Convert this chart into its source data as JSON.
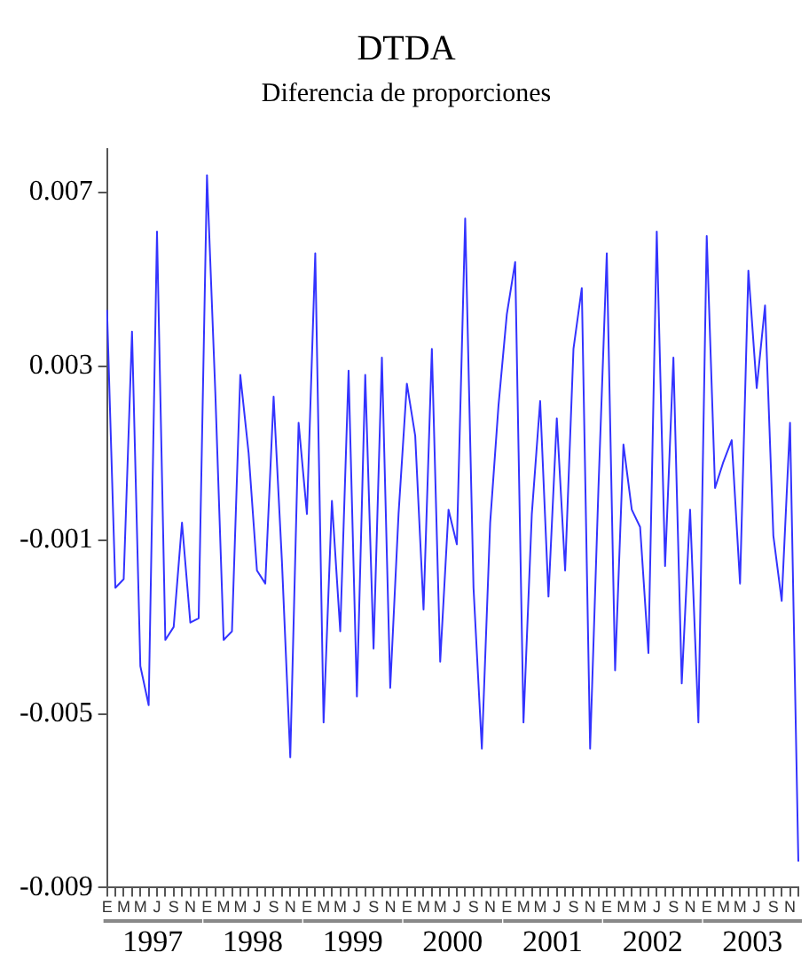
{
  "chart_data": {
    "type": "line",
    "title": "DTDA",
    "subtitle": "Diferencia de proporciones",
    "categories": [
      "E",
      null,
      "M",
      null,
      "M",
      null,
      "J",
      null,
      "S",
      null,
      "N",
      null,
      "E",
      null,
      "M",
      null,
      "M",
      null,
      "J",
      null,
      "S",
      null,
      "N",
      null,
      "E",
      null,
      "M",
      null,
      "M",
      null,
      "J",
      null,
      "S",
      null,
      "N",
      null,
      "E",
      null,
      "M",
      null,
      "M",
      null,
      "J",
      null,
      "S",
      null,
      "N",
      null,
      "E",
      null,
      "M",
      null,
      "M",
      null,
      "J",
      null,
      "S",
      null,
      "N",
      null,
      "E",
      null,
      "M",
      null,
      "M",
      null,
      "J",
      null,
      "S",
      null,
      "N",
      null,
      "E",
      null,
      "M",
      null,
      "M",
      null,
      "J",
      null,
      "S",
      null,
      "N",
      null
    ],
    "series": [
      {
        "color": "#3333ff",
        "values": [
          0.0043,
          -0.0021,
          -0.0019,
          0.0038,
          -0.0039,
          -0.0048,
          0.0061,
          -0.0033,
          -0.003,
          -0.0006,
          -0.0029,
          -0.0028,
          0.0074,
          0.0024,
          -0.0033,
          -0.0031,
          0.0028,
          0.001,
          -0.0017,
          -0.002,
          0.0023,
          -0.0015,
          -0.006,
          0.0017,
          -0.0004,
          0.0056,
          -0.0052,
          -0.0001,
          -0.0031,
          0.0029,
          -0.0046,
          0.0028,
          -0.0035,
          0.0032,
          -0.0044,
          -0.0004,
          0.0026,
          0.0014,
          -0.0026,
          0.0034,
          -0.0038,
          -0.0003,
          -0.0011,
          0.0064,
          -0.0021,
          -0.0058,
          -0.0006,
          0.0021,
          0.0042,
          0.0054,
          -0.0052,
          -0.0004,
          0.0022,
          -0.0023,
          0.0018,
          -0.0017,
          0.0034,
          0.0048,
          -0.0058,
          0.0002,
          0.0056,
          -0.004,
          0.0012,
          -0.0003,
          -0.0007,
          -0.0036,
          0.0061,
          -0.0016,
          0.0032,
          -0.0043,
          -0.0003,
          -0.0052,
          0.006,
          0.0002,
          0.0008,
          0.0013,
          -0.002,
          0.0052,
          0.0025,
          0.0044,
          -0.0009,
          -0.0024,
          0.0017,
          -0.0084
        ]
      }
    ],
    "ylim": [
      -0.009,
      0.008
    ],
    "yticks": [
      0.007,
      0.003,
      -0.001,
      -0.005,
      -0.009
    ],
    "annotations": [
      "1997",
      "1998",
      "1999",
      "2000",
      "2001",
      "2002",
      "2003"
    ],
    "grid": false,
    "legend": false,
    "marker": "none",
    "line_style": "solid"
  }
}
